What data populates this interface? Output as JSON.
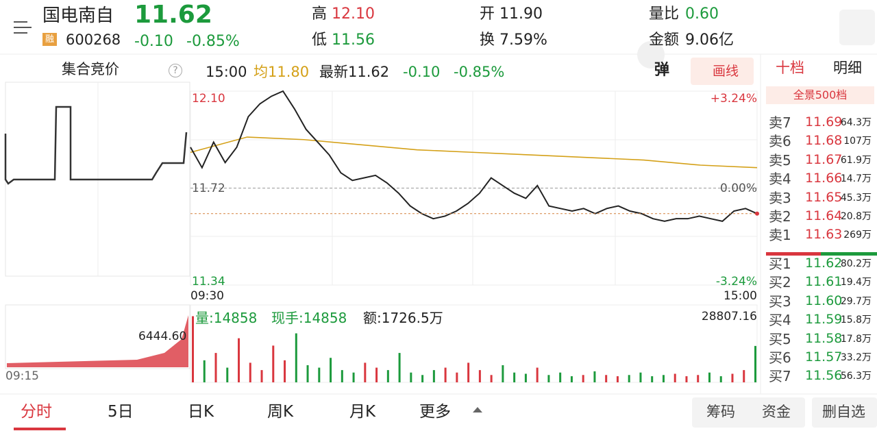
{
  "header": {
    "name": "国电南自",
    "price": "11.62",
    "tag": "融",
    "code": "600268",
    "change": "-0.10",
    "pct": "-0.85%",
    "high_label": "高",
    "high": "12.10",
    "low_label": "低",
    "low": "11.56",
    "open_label": "开",
    "open": "11.90",
    "turnover_label": "换",
    "turnover": "7.59%",
    "ratio_label": "量比",
    "ratio": "0.60",
    "amount_label": "金额",
    "amount": "9.06亿"
  },
  "auction": {
    "title": "集合竞价",
    "help": "?",
    "time": "09:15",
    "volume": "6444.60"
  },
  "info": {
    "time": "15:00",
    "avg": "均11.80",
    "latest": "最新11.62",
    "change": "-0.10",
    "pct": "-0.85%",
    "button_pop": "弹",
    "button_draw": "画线"
  },
  "axis": {
    "high": "12.10",
    "mid": "11.72",
    "low": "11.34",
    "high_pct": "+3.24%",
    "mid_pct": "0.00%",
    "low_pct": "-3.24%",
    "start": "09:30",
    "end": "15:00"
  },
  "intraday": {
    "ylim": [
      11.34,
      12.1
    ],
    "prices": [
      11.88,
      11.8,
      11.9,
      11.82,
      11.88,
      12.0,
      12.05,
      12.08,
      12.1,
      12.03,
      11.95,
      11.9,
      11.85,
      11.78,
      11.75,
      11.76,
      11.77,
      11.74,
      11.7,
      11.65,
      11.62,
      11.6,
      11.61,
      11.63,
      11.66,
      11.7,
      11.76,
      11.73,
      11.7,
      11.68,
      11.73,
      11.65,
      11.64,
      11.63,
      11.64,
      11.62,
      11.64,
      11.65,
      11.63,
      11.62,
      11.6,
      11.59,
      11.6,
      11.6,
      11.61,
      11.6,
      11.59,
      11.63,
      11.64,
      11.62
    ],
    "avg": [
      11.86,
      11.92,
      11.91,
      11.89,
      11.87,
      11.86,
      11.85,
      11.84,
      11.83,
      11.81,
      11.8
    ],
    "volume_max": 28807.16,
    "volumes": [
      27000,
      9000,
      12000,
      6000,
      18000,
      8000,
      5000,
      15000,
      9000,
      20000,
      7000,
      6000,
      10000,
      5000,
      4000,
      8000,
      6000,
      5000,
      12000,
      4000,
      3000,
      5000,
      6000,
      4000,
      8000,
      5000,
      3000,
      7000,
      4000,
      3500,
      6000,
      3000,
      4000,
      2500,
      3000,
      4500,
      3000,
      2500,
      3000,
      4000,
      2500,
      3000,
      3500,
      2500,
      3000,
      4000,
      2500,
      3500,
      5000,
      14858
    ]
  },
  "volume_info": {
    "volume": "量:14858",
    "hand": "现手:14858",
    "amount": "额:1726.5万"
  },
  "orderbook": {
    "tab_ten": "十档",
    "tab_detail": "明细",
    "panorama": "全景500档",
    "sells": [
      {
        "label": "卖7",
        "price": "11.69",
        "vol": "64.3万"
      },
      {
        "label": "卖6",
        "price": "11.68",
        "vol": "107万"
      },
      {
        "label": "卖5",
        "price": "11.67",
        "vol": "61.9万"
      },
      {
        "label": "卖4",
        "price": "11.66",
        "vol": "14.7万"
      },
      {
        "label": "卖3",
        "price": "11.65",
        "vol": "45.3万"
      },
      {
        "label": "卖2",
        "price": "11.64",
        "vol": "20.8万"
      },
      {
        "label": "卖1",
        "price": "11.63",
        "vol": "269万"
      }
    ],
    "buys": [
      {
        "label": "买1",
        "price": "11.62",
        "vol": "80.2万"
      },
      {
        "label": "买2",
        "price": "11.61",
        "vol": "19.4万"
      },
      {
        "label": "买3",
        "price": "11.60",
        "vol": "29.7万"
      },
      {
        "label": "买4",
        "price": "11.59",
        "vol": "15.8万"
      },
      {
        "label": "买5",
        "price": "11.58",
        "vol": "17.8万"
      },
      {
        "label": "买6",
        "price": "11.57",
        "vol": "33.2万"
      },
      {
        "label": "买7",
        "price": "11.56",
        "vol": "56.3万"
      }
    ]
  },
  "tabs": [
    "分时",
    "5日",
    "日K",
    "周K",
    "月K",
    "更多"
  ],
  "actions": [
    "筹码",
    "资金",
    "删自选"
  ]
}
